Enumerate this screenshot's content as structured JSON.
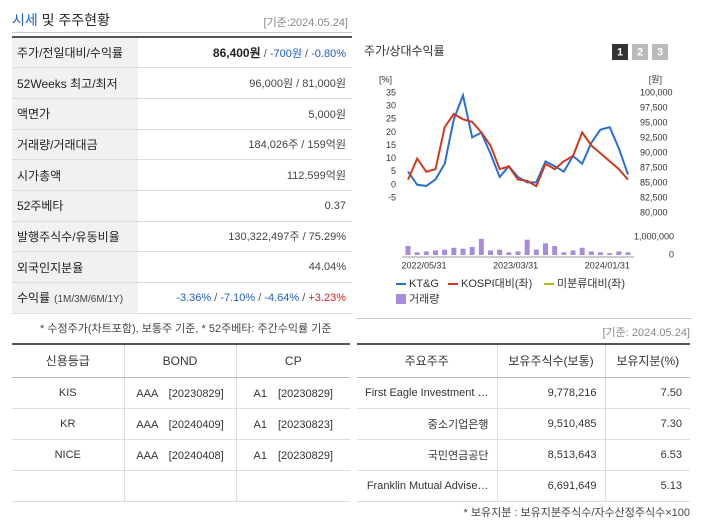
{
  "header": {
    "title_main": "시세",
    "title_rest": "및 주주현황",
    "date": "[기준:2024.05.24]"
  },
  "quote_table": {
    "rows": [
      {
        "label": "주가/전일대비/수익률",
        "value": [
          {
            "text": "86,400원",
            "color": "#222",
            "bold": true
          },
          {
            "text": " / ",
            "color": "#555"
          },
          {
            "text": "-700원",
            "color": "#1f5fc9"
          },
          {
            "text": " / ",
            "color": "#555"
          },
          {
            "text": "-0.80%",
            "color": "#1f5fc9"
          }
        ]
      },
      {
        "label": "52Weeks 최고/최저",
        "value": [
          {
            "text": "96,000원 / 81,000원",
            "color": "#444"
          }
        ]
      },
      {
        "label": "액면가",
        "value": [
          {
            "text": "5,000원",
            "color": "#444"
          }
        ]
      },
      {
        "label": "거래량/거래대금",
        "value": [
          {
            "text": "184,026주 / 159억원",
            "color": "#444"
          }
        ]
      },
      {
        "label": "시가총액",
        "value": [
          {
            "text": "112,599억원",
            "color": "#444"
          }
        ]
      },
      {
        "label": "52주베타",
        "value": [
          {
            "text": "0.37",
            "color": "#444"
          }
        ]
      },
      {
        "label": "발행주식수/유동비율",
        "value": [
          {
            "text": "130,322,497주 / 75.29%",
            "color": "#444"
          }
        ]
      },
      {
        "label": "외국인지분율",
        "value": [
          {
            "text": "44.04%",
            "color": "#444"
          }
        ]
      },
      {
        "label": "수익률",
        "label_note": "(1M/3M/6M/1Y)",
        "value": [
          {
            "text": "-3.36%",
            "color": "#1f5fc9"
          },
          {
            "text": " / ",
            "color": "#555"
          },
          {
            "text": "-7.10%",
            "color": "#1f5fc9"
          },
          {
            "text": " / ",
            "color": "#555"
          },
          {
            "text": "-4.64%",
            "color": "#1f5fc9"
          },
          {
            "text": " / ",
            "color": "#555"
          },
          {
            "text": "+3.23%",
            "color": "#d9231f"
          }
        ]
      }
    ],
    "note": "* 수정주가(차트포함), 보통주 기준, * 52주베타: 주간수익률 기준"
  },
  "chart_data": {
    "type": "line",
    "title": "주가/상대수익률",
    "tabs": [
      "1",
      "2",
      "3"
    ],
    "ylabel": "[%]",
    "y2label": "[원]",
    "categories": [
      "2022/05/31",
      null,
      null,
      null,
      null,
      null,
      null,
      null,
      null,
      null,
      "2023/03/31",
      null,
      null,
      null,
      null,
      null,
      null,
      null,
      null,
      null,
      "2024/01/31",
      null,
      null,
      null,
      null
    ],
    "ylim": [
      -5,
      35
    ],
    "yticks": [
      35,
      30,
      25,
      20,
      15,
      10,
      5,
      0,
      -5
    ],
    "y2lim": [
      80000,
      100000
    ],
    "y2ticks": [
      {
        "value": 100000,
        "label": "100,000"
      },
      {
        "value": 97500,
        "label": "97,500"
      },
      {
        "value": 95000,
        "label": "95,000"
      },
      {
        "value": 92500,
        "label": "92,500"
      },
      {
        "value": 90000,
        "label": "90,000"
      },
      {
        "value": 87500,
        "label": "87,500"
      },
      {
        "value": 85000,
        "label": "85,000"
      },
      {
        "value": 82500,
        "label": "82,500"
      },
      {
        "value": 80000,
        "label": "80,000"
      }
    ],
    "volume_lim": [
      0,
      1000000
    ],
    "volume_ticks": [
      {
        "value": 1000000,
        "label": "1,000,000"
      },
      0
    ],
    "series": [
      {
        "name": "KT&G",
        "color": "#2a6fd6",
        "axis": "y2",
        "values": [
          86900,
          84700,
          84500,
          85600,
          88200,
          95600,
          99600,
          92600,
          93400,
          89900,
          86000,
          87800,
          86000,
          85100,
          85100,
          88600,
          87800,
          86900,
          89500,
          88200,
          91700,
          93900,
          94300,
          90800,
          86400
        ]
      },
      {
        "name": "KOSPI대비(좌)",
        "color": "#cf3a1c",
        "values": [
          2,
          10,
          5,
          6,
          22,
          27,
          25,
          24,
          20,
          15,
          6,
          7,
          2,
          1.5,
          -0.5,
          8,
          6,
          9,
          11,
          20,
          15,
          12,
          9,
          6,
          2
        ]
      },
      {
        "name": "미분류대비(좌)",
        "color": "#a8c41a",
        "values": [
          null,
          null,
          null,
          null,
          null,
          null,
          null,
          null,
          null,
          null,
          null,
          null,
          null,
          null,
          null,
          null,
          null,
          null,
          null,
          null,
          null,
          null,
          null,
          null,
          null
        ]
      }
    ],
    "volume": {
      "name": "거래량",
      "color": "#a98bdc",
      "values": [
        500000,
        150000,
        200000,
        250000,
        300000,
        400000,
        350000,
        450000,
        900000,
        250000,
        300000,
        150000,
        200000,
        850000,
        300000,
        650000,
        500000,
        150000,
        250000,
        400000,
        200000,
        150000,
        100000,
        200000,
        150000
      ]
    }
  },
  "credit_table": {
    "headers": [
      "신용등급",
      "BOND",
      "CP"
    ],
    "rows": [
      [
        "KIS",
        "AAA　[20230829]",
        "A1　[20230829]"
      ],
      [
        "KR",
        "AAA　[20240409]",
        "A1　[20230823]"
      ],
      [
        "NICE",
        "AAA　[20240408]",
        "A1　[20230829]"
      ],
      [
        "",
        "",
        ""
      ]
    ]
  },
  "holders_table": {
    "date": "[기준: 2024.05.24]",
    "headers": [
      "주요주주",
      "보유주식수(보통)",
      "보유지분(%)"
    ],
    "rows": [
      [
        "First Eagle Investment …",
        "9,778,216",
        "7.50"
      ],
      [
        "중소기업은행",
        "9,510,485",
        "7.30"
      ],
      [
        "국민연금공단",
        "8,513,643",
        "6.53"
      ],
      [
        "Franklin Mutual Advise…",
        "6,691,649",
        "5.13"
      ]
    ],
    "note": "* 보유지분 : 보유지분주식수/자수산정주식수×100"
  }
}
